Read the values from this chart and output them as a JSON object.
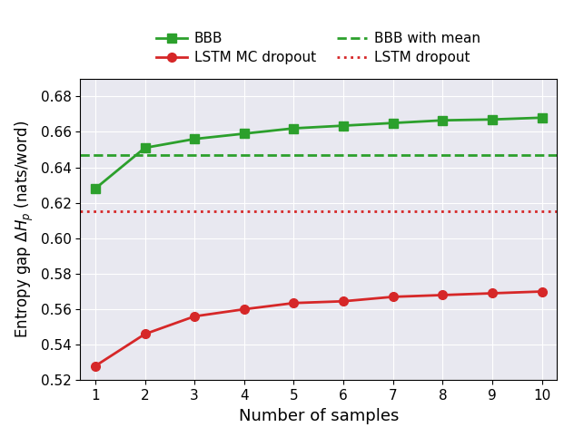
{
  "x": [
    1,
    2,
    3,
    4,
    5,
    6,
    7,
    8,
    9,
    10
  ],
  "bbb": [
    0.628,
    0.651,
    0.656,
    0.659,
    0.662,
    0.6635,
    0.665,
    0.6665,
    0.667,
    0.668
  ],
  "lstm_mc": [
    0.528,
    0.546,
    0.556,
    0.56,
    0.5635,
    0.5645,
    0.567,
    0.568,
    0.569,
    0.57
  ],
  "bbb_mean": 0.647,
  "lstm_dropout": 0.615,
  "bbb_color": "#2ca02c",
  "lstm_mc_color": "#d62728",
  "bbb_mean_color": "#2ca02c",
  "lstm_dropout_color": "#d62728",
  "ylabel": "Entropy gap $\\Delta H_p$ (nats/word)",
  "xlabel": "Number of samples",
  "ylim": [
    0.52,
    0.69
  ],
  "xlim": [
    0.7,
    10.3
  ],
  "yticks": [
    0.52,
    0.54,
    0.56,
    0.58,
    0.6,
    0.62,
    0.64,
    0.66,
    0.68
  ],
  "xticks": [
    1,
    2,
    3,
    4,
    5,
    6,
    7,
    8,
    9,
    10
  ],
  "background_color": "#e8e8f0",
  "fig_background": "#ffffff",
  "legend_bbb": "BBB",
  "legend_bbb_mean": "BBB with mean",
  "legend_lstm_mc": "LSTM MC dropout",
  "legend_lstm_dropout": "LSTM dropout",
  "marker_size": 7,
  "line_width": 2.0,
  "xlabel_fontsize": 13,
  "ylabel_fontsize": 12,
  "tick_fontsize": 11,
  "legend_fontsize": 11
}
